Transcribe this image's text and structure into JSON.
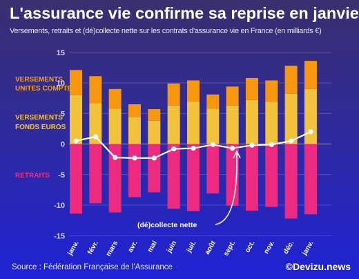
{
  "header": {
    "title": "L'assurance vie confirme sa reprise en janvier",
    "subtitle": "Versements, retraits et (dé)collecte nette sur les contrats d'assurance vie en France (en milliards €)"
  },
  "footer": {
    "source": "Source : Fédération Française de l'Assurance",
    "brand": "©Devizu.news"
  },
  "colors": {
    "uc": "#f7970f",
    "euros": "#f3c23c",
    "retraits": "#ec2a7f",
    "line": "#ffffff",
    "grid": "#8c87c4"
  },
  "chart_data": {
    "type": "bar",
    "stacked": true,
    "categories": [
      "janv.",
      "févr.",
      "mars",
      "avr.",
      "mai",
      "juin",
      "juil.",
      "août",
      "sept.",
      "oct.",
      "nov.",
      "déc.",
      "janv."
    ],
    "series": [
      {
        "name": "VERSEMENTS FONDS EUROS",
        "type": "bar",
        "values": [
          8.0,
          6.7,
          5.8,
          4.4,
          3.8,
          6.3,
          6.9,
          5.8,
          6.3,
          7.2,
          6.9,
          8.2,
          9.0
        ]
      },
      {
        "name": "VERSEMENTS UNITES COMPTE",
        "type": "bar",
        "values": [
          4.1,
          4.4,
          3.2,
          2.1,
          1.9,
          3.6,
          3.5,
          2.3,
          3.1,
          3.6,
          3.5,
          4.6,
          4.6
        ]
      },
      {
        "name": "RETRAITS",
        "type": "bar",
        "values": [
          -11.4,
          -9.7,
          -11.2,
          -8.7,
          -7.9,
          -10.6,
          -11.0,
          -8.1,
          -10.1,
          -10.9,
          -10.3,
          -12.2,
          -11.5
        ]
      },
      {
        "name": "(dé)collecte nette",
        "type": "line",
        "values": [
          0.5,
          1.2,
          -2.2,
          -2.3,
          -2.3,
          -0.8,
          -0.7,
          -0.1,
          -0.7,
          -0.2,
          -0.1,
          0.5,
          2.0
        ]
      }
    ],
    "legend": {
      "uc": [
        "VERSEMENTS",
        "UNITES COMPTE"
      ],
      "euros": [
        "VERSEMENTS",
        "FONDS EUROS"
      ],
      "retraits": [
        "RETRAITS"
      ]
    },
    "annotation": "(dé)collecte nette",
    "yticks": [
      15,
      10,
      5,
      0,
      -5,
      -10,
      -15
    ],
    "ylim": [
      -15,
      15
    ],
    "grid": true
  }
}
